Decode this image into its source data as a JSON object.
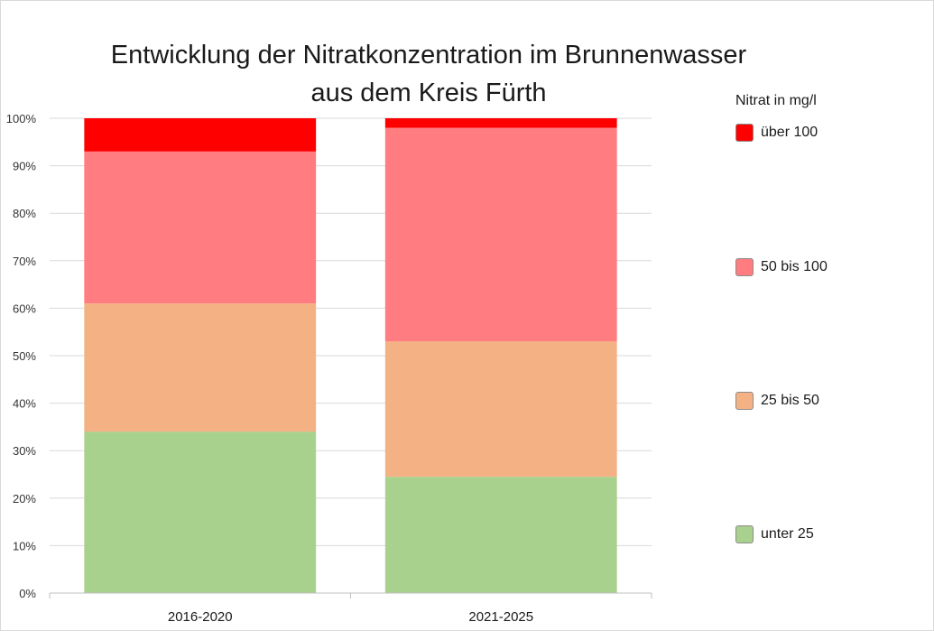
{
  "chart_data": {
    "type": "bar",
    "stacked": true,
    "title_lines": [
      "Entwicklung der Nitratkonzentration im Brunnenwasser",
      "aus dem Kreis Fürth"
    ],
    "categories": [
      "2016-2020",
      "2021-2025"
    ],
    "yticks": [
      "0%",
      "10%",
      "20%",
      "30%",
      "40%",
      "50%",
      "60%",
      "70%",
      "80%",
      "90%",
      "100%"
    ],
    "ylim": [
      0,
      100
    ],
    "legend_title": "Nitrat in mg/l",
    "series": [
      {
        "name": "unter 25",
        "color": "#a9d18e",
        "values": [
          34,
          24.5
        ]
      },
      {
        "name": "25 bis 50",
        "color": "#f4b183",
        "values": [
          27,
          28.5
        ]
      },
      {
        "name": "50 bis 100",
        "color": "#ff7c80",
        "values": [
          32,
          45
        ]
      },
      {
        "name": "über 100",
        "color": "#ff0000",
        "values": [
          7,
          2
        ]
      }
    ],
    "legend_order": [
      "über 100",
      "50 bis 100",
      "25 bis 50",
      "unter 25"
    ]
  }
}
